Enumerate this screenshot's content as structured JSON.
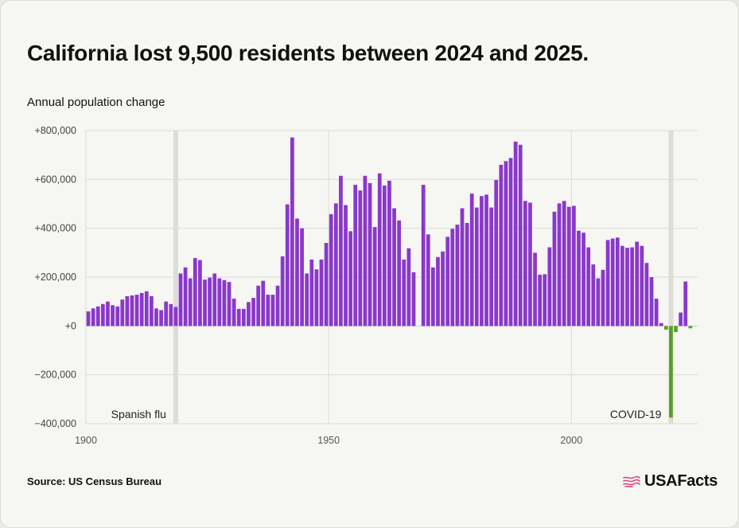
{
  "title": "California lost 9,500 residents between 2024 and 2025.",
  "subtitle": "Annual population change",
  "source": "Source: US Census Bureau",
  "brand": "USAFacts",
  "colors": {
    "positive": "#8a38c9",
    "negative": "#55a02a",
    "highlight_band": "#dcdcd8",
    "grid": "#dcdcd6",
    "brand_flag": "#d94488"
  },
  "chart_data": {
    "type": "bar",
    "title": "California lost 9,500 residents between 2024 and 2025.",
    "ylabel": "Annual population change",
    "xlabel": "",
    "xlim": [
      1900,
      2026
    ],
    "ylim": [
      -400000,
      800000
    ],
    "y_ticks": [
      {
        "value": 800000,
        "label": "+800,000"
      },
      {
        "value": 600000,
        "label": "+600,000"
      },
      {
        "value": 400000,
        "label": "+400,000"
      },
      {
        "value": 200000,
        "label": "+200,000"
      },
      {
        "value": 0,
        "label": "+0"
      },
      {
        "value": -200000,
        "label": "−200,000"
      },
      {
        "value": -400000,
        "label": "−400,000"
      }
    ],
    "x_ticks": [
      {
        "value": 1900,
        "label": "1900"
      },
      {
        "value": 1950,
        "label": "1950"
      },
      {
        "value": 2000,
        "label": "2000"
      }
    ],
    "grid": true,
    "annotations": [
      {
        "year": 1918,
        "label": "Spanish flu",
        "label_side": "left"
      },
      {
        "year": 2020,
        "label": "COVID-19",
        "label_side": "left"
      }
    ],
    "x": [
      1900,
      1901,
      1902,
      1903,
      1904,
      1905,
      1906,
      1907,
      1908,
      1909,
      1910,
      1911,
      1912,
      1913,
      1914,
      1915,
      1916,
      1917,
      1918,
      1919,
      1920,
      1921,
      1922,
      1923,
      1924,
      1925,
      1926,
      1927,
      1928,
      1929,
      1930,
      1931,
      1932,
      1933,
      1934,
      1935,
      1936,
      1937,
      1938,
      1939,
      1940,
      1941,
      1942,
      1943,
      1944,
      1945,
      1946,
      1947,
      1948,
      1949,
      1950,
      1951,
      1952,
      1953,
      1954,
      1955,
      1956,
      1957,
      1958,
      1959,
      1960,
      1961,
      1962,
      1963,
      1964,
      1965,
      1966,
      1967,
      1968,
      1969,
      1970,
      1971,
      1972,
      1973,
      1974,
      1975,
      1976,
      1977,
      1978,
      1979,
      1980,
      1981,
      1982,
      1983,
      1984,
      1985,
      1986,
      1987,
      1988,
      1989,
      1990,
      1991,
      1992,
      1993,
      1994,
      1995,
      1996,
      1997,
      1998,
      1999,
      2000,
      2001,
      2002,
      2003,
      2004,
      2005,
      2006,
      2007,
      2008,
      2009,
      2010,
      2011,
      2012,
      2013,
      2014,
      2015,
      2016,
      2017,
      2018,
      2019,
      2020,
      2021,
      2022,
      2023,
      2024
    ],
    "values": [
      60000,
      72000,
      80000,
      90000,
      100000,
      85000,
      80000,
      108000,
      122000,
      125000,
      128000,
      135000,
      142000,
      122000,
      72000,
      65000,
      100000,
      90000,
      78000,
      215000,
      240000,
      195000,
      278000,
      270000,
      190000,
      198000,
      215000,
      195000,
      188000,
      180000,
      112000,
      70000,
      70000,
      98000,
      115000,
      165000,
      185000,
      128000,
      128000,
      165000,
      285000,
      498000,
      772000,
      440000,
      400000,
      215000,
      272000,
      232000,
      272000,
      340000,
      458000,
      502000,
      615000,
      495000,
      388000,
      578000,
      555000,
      615000,
      585000,
      405000,
      625000,
      575000,
      595000,
      482000,
      432000,
      272000,
      318000,
      220000,
      0,
      578000,
      375000,
      240000,
      282000,
      305000,
      365000,
      398000,
      415000,
      482000,
      422000,
      542000,
      485000,
      532000,
      538000,
      485000,
      598000,
      660000,
      675000,
      688000,
      755000,
      742000,
      512000,
      505000,
      300000,
      210000,
      212000,
      322000,
      468000,
      502000,
      512000,
      488000,
      492000,
      390000,
      382000,
      322000,
      252000,
      195000,
      230000,
      352000,
      358000,
      362000,
      328000,
      320000,
      322000,
      345000,
      328000,
      258000,
      200000,
      112000,
      12000,
      -15000,
      -375000,
      -25000,
      55000,
      182000,
      -9500
    ]
  }
}
